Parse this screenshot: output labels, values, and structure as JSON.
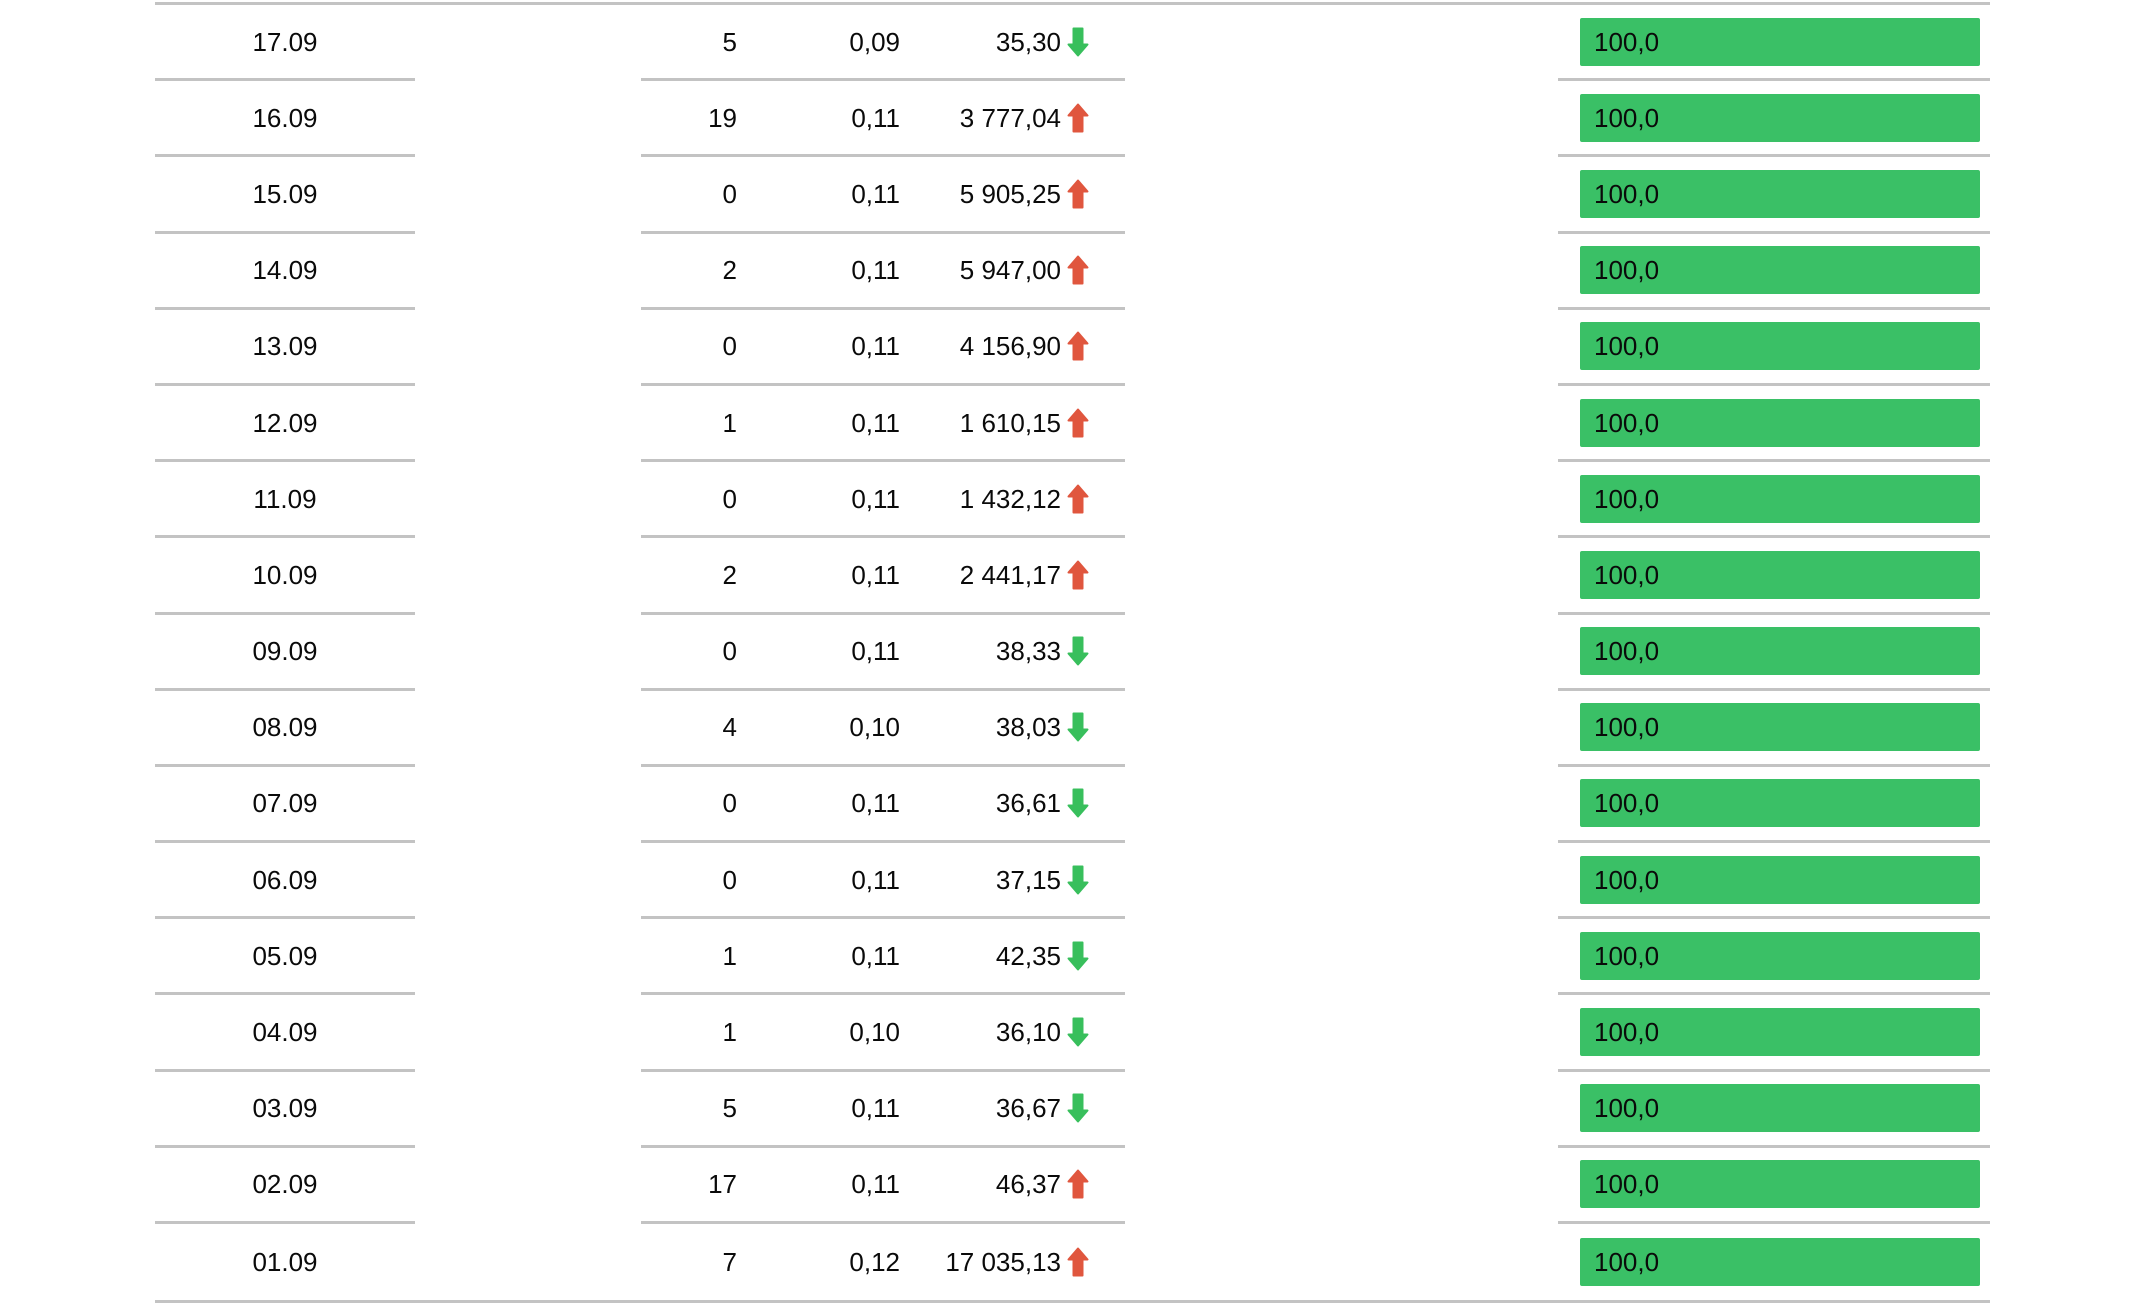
{
  "page": {
    "background": "#ffffff",
    "description_labels": {
      "bar_full_label": "100,0"
    }
  },
  "colors": {
    "bar_fill": "#3ac066",
    "trend_up": "#e0563e",
    "trend_down": "#38bf5c",
    "divider": "#c3c3c3",
    "text": "#0a0a0a"
  },
  "table": {
    "rows": [
      {
        "date": "17.09",
        "count": "5",
        "rate": "0,09",
        "value": "35,30",
        "trend": "down",
        "bar_label": "100,0",
        "bar_percent": 100
      },
      {
        "date": "16.09",
        "count": "19",
        "rate": "0,11",
        "value": "3 777,04",
        "trend": "up",
        "bar_label": "100,0",
        "bar_percent": 100
      },
      {
        "date": "15.09",
        "count": "0",
        "rate": "0,11",
        "value": "5 905,25",
        "trend": "up",
        "bar_label": "100,0",
        "bar_percent": 100
      },
      {
        "date": "14.09",
        "count": "2",
        "rate": "0,11",
        "value": "5 947,00",
        "trend": "up",
        "bar_label": "100,0",
        "bar_percent": 100
      },
      {
        "date": "13.09",
        "count": "0",
        "rate": "0,11",
        "value": "4 156,90",
        "trend": "up",
        "bar_label": "100,0",
        "bar_percent": 100
      },
      {
        "date": "12.09",
        "count": "1",
        "rate": "0,11",
        "value": "1 610,15",
        "trend": "up",
        "bar_label": "100,0",
        "bar_percent": 100
      },
      {
        "date": "11.09",
        "count": "0",
        "rate": "0,11",
        "value": "1 432,12",
        "trend": "up",
        "bar_label": "100,0",
        "bar_percent": 100
      },
      {
        "date": "10.09",
        "count": "2",
        "rate": "0,11",
        "value": "2 441,17",
        "trend": "up",
        "bar_label": "100,0",
        "bar_percent": 100
      },
      {
        "date": "09.09",
        "count": "0",
        "rate": "0,11",
        "value": "38,33",
        "trend": "down",
        "bar_label": "100,0",
        "bar_percent": 100
      },
      {
        "date": "08.09",
        "count": "4",
        "rate": "0,10",
        "value": "38,03",
        "trend": "down",
        "bar_label": "100,0",
        "bar_percent": 100
      },
      {
        "date": "07.09",
        "count": "0",
        "rate": "0,11",
        "value": "36,61",
        "trend": "down",
        "bar_label": "100,0",
        "bar_percent": 100
      },
      {
        "date": "06.09",
        "count": "0",
        "rate": "0,11",
        "value": "37,15",
        "trend": "down",
        "bar_label": "100,0",
        "bar_percent": 100
      },
      {
        "date": "05.09",
        "count": "1",
        "rate": "0,11",
        "value": "42,35",
        "trend": "down",
        "bar_label": "100,0",
        "bar_percent": 100
      },
      {
        "date": "04.09",
        "count": "1",
        "rate": "0,10",
        "value": "36,10",
        "trend": "down",
        "bar_label": "100,0",
        "bar_percent": 100
      },
      {
        "date": "03.09",
        "count": "5",
        "rate": "0,11",
        "value": "36,67",
        "trend": "down",
        "bar_label": "100,0",
        "bar_percent": 100
      },
      {
        "date": "02.09",
        "count": "17",
        "rate": "0,11",
        "value": "46,37",
        "trend": "up",
        "bar_label": "100,0",
        "bar_percent": 100
      },
      {
        "date": "01.09",
        "count": "7",
        "rate": "0,12",
        "value": "17 035,13",
        "trend": "up",
        "bar_label": "100,0",
        "bar_percent": 100
      }
    ]
  }
}
